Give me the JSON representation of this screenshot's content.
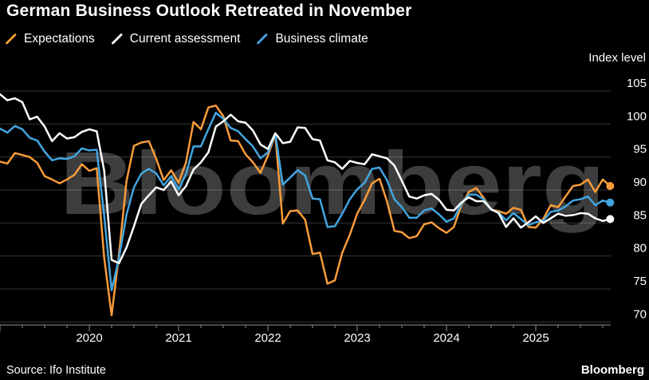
{
  "header": {
    "title": "German Business Outlook Retreated in November"
  },
  "legend": {
    "items": [
      {
        "label": "Expectations",
        "color": "#F79C3A"
      },
      {
        "label": "Current assessment",
        "color": "#FFFFFF"
      },
      {
        "label": "Business climate",
        "color": "#42A5E0"
      }
    ]
  },
  "axis": {
    "y_title": "Index level"
  },
  "watermark": "Bloomberg",
  "footer": {
    "source": "Source: Ifo Institute",
    "brand": "Bloomberg"
  },
  "chart_data": {
    "type": "line",
    "title": "German Business Outlook Retreated in November",
    "ylabel": "Index level",
    "ylim": [
      70,
      105
    ],
    "y_ticks": [
      70,
      75,
      80,
      85,
      90,
      95,
      100,
      105
    ],
    "x_start": "2019-01",
    "x_end": "2025-11",
    "frequency": "monthly",
    "x_tick_years": [
      "2020",
      "2021",
      "2022",
      "2023",
      "2024",
      "2025"
    ],
    "grid": "horizontal",
    "legend_position": "top-left",
    "colors": {
      "background": "#000000",
      "gridline": "rgba(255,255,255,0.22)",
      "axis": "#8f8f8f",
      "watermark": "#3D3D3D",
      "text": "#FFFFFF"
    },
    "series": [
      {
        "name": "Expectations",
        "color": "#F79C3A",
        "values": [
          94.3,
          94.0,
          95.6,
          95.3,
          95.0,
          94.1,
          92.1,
          91.6,
          91.0,
          91.6,
          92.3,
          93.9,
          92.9,
          93.3,
          79.7,
          71.0,
          80.3,
          91.4,
          96.7,
          97.2,
          97.4,
          94.7,
          91.5,
          93.0,
          91.1,
          94.2,
          100.3,
          99.2,
          102.5,
          102.8,
          101.2,
          97.5,
          97.4,
          95.4,
          94.2,
          92.6,
          95.2,
          98.4,
          84.9,
          86.8,
          86.9,
          85.5,
          80.3,
          80.5,
          75.8,
          76.3,
          80.5,
          83.2,
          86.4,
          88.5,
          91.0,
          91.7,
          88.3,
          83.8,
          83.6,
          82.7,
          83.0,
          84.8,
          85.1,
          84.2,
          83.5,
          84.4,
          87.7,
          89.7,
          90.3,
          88.8,
          87.0,
          86.8,
          86.4,
          87.3,
          87.0,
          84.4,
          84.3,
          85.6,
          87.7,
          87.4,
          89.0,
          90.6,
          90.8,
          91.6,
          89.7,
          91.6,
          90.6
        ]
      },
      {
        "name": "Current assessment",
        "color": "#FFFFFF",
        "values": [
          104.5,
          103.6,
          103.9,
          103.3,
          100.7,
          101.1,
          99.6,
          97.4,
          98.6,
          97.8,
          98.0,
          98.8,
          99.2,
          98.9,
          92.9,
          79.4,
          78.9,
          81.3,
          84.5,
          87.9,
          89.2,
          90.4,
          90.0,
          91.3,
          89.2,
          90.6,
          93.1,
          94.2,
          95.7,
          99.6,
          100.4,
          101.4,
          100.4,
          100.2,
          99.0,
          96.9,
          96.2,
          98.6,
          97.1,
          97.3,
          99.5,
          99.4,
          97.7,
          97.5,
          94.5,
          94.2,
          93.2,
          94.4,
          94.1,
          93.9,
          95.4,
          95.1,
          94.8,
          93.7,
          91.4,
          89.0,
          88.7,
          89.2,
          89.4,
          88.5,
          87.0,
          86.9,
          88.1,
          88.9,
          88.3,
          88.3,
          87.1,
          86.5,
          84.4,
          85.7,
          84.3,
          85.1,
          86.0,
          85.0,
          85.7,
          86.4,
          86.1,
          86.2,
          86.5,
          86.4,
          85.7,
          85.3,
          85.6
        ]
      },
      {
        "name": "Business climate",
        "color": "#42A5E0",
        "values": [
          99.3,
          98.7,
          99.7,
          99.2,
          97.9,
          97.5,
          95.8,
          94.5,
          94.8,
          94.7,
          95.1,
          96.3,
          96.0,
          96.1,
          86.1,
          74.8,
          79.7,
          86.3,
          90.4,
          92.5,
          93.2,
          92.5,
          90.7,
          92.1,
          90.1,
          92.4,
          96.6,
          96.6,
          99.2,
          101.7,
          100.8,
          99.4,
          98.9,
          97.7,
          96.6,
          94.8,
          95.7,
          98.5,
          90.8,
          91.9,
          93.0,
          92.2,
          88.7,
          88.6,
          84.4,
          84.5,
          86.4,
          88.6,
          90.1,
          91.1,
          93.2,
          93.4,
          91.5,
          88.6,
          87.4,
          85.8,
          85.8,
          86.9,
          87.2,
          86.3,
          85.2,
          85.7,
          87.9,
          89.3,
          89.3,
          88.6,
          87.0,
          86.6,
          85.4,
          86.5,
          85.6,
          84.7,
          85.1,
          85.3,
          86.7,
          86.9,
          87.5,
          88.4,
          88.6,
          89.0,
          87.7,
          88.4,
          88.1
        ]
      }
    ]
  }
}
